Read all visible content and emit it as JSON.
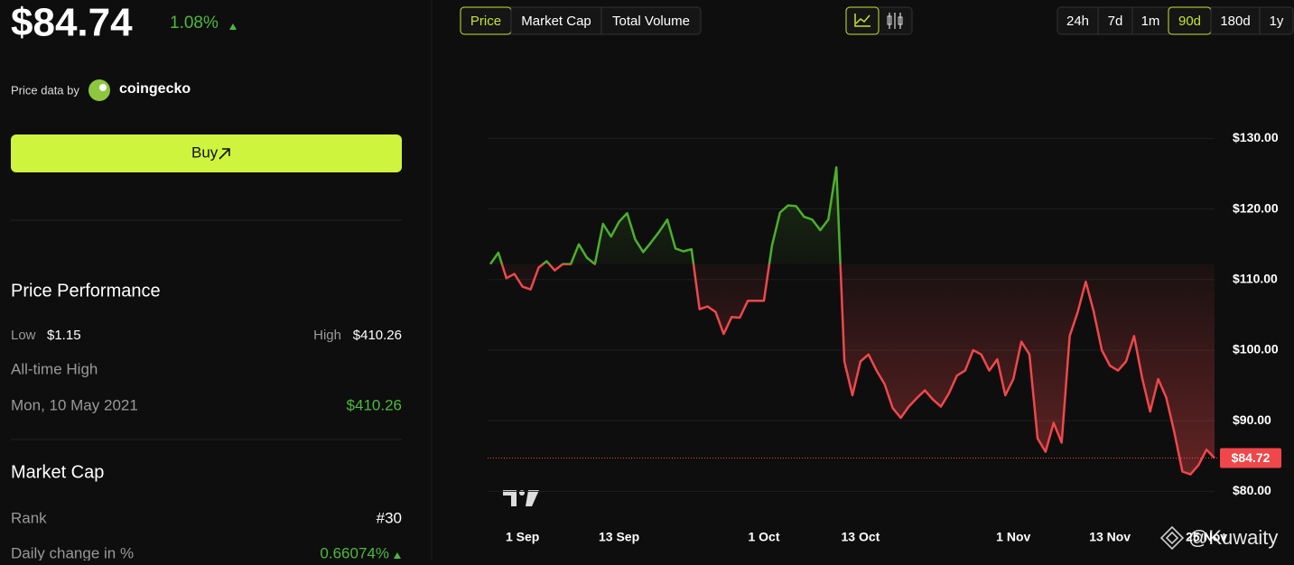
{
  "header": {
    "price": "$84.74",
    "change": "1.08%",
    "attribution_prefix": "Price data by",
    "attribution_brand": "coingecko"
  },
  "buy": {
    "label": "Buy"
  },
  "performance": {
    "title": "Price Performance",
    "low_label": "Low",
    "low": "$1.15",
    "high_label": "High",
    "high": "$410.26",
    "ath_label": "All-time High",
    "ath_date": "Mon, 10 May 2021",
    "ath_value": "$410.26"
  },
  "market_cap": {
    "title": "Market Cap",
    "rank_label": "Rank",
    "rank": "#30",
    "daily_label": "Daily change in %",
    "daily": "0.66074%"
  },
  "tabs": {
    "items": [
      "Price",
      "Market Cap",
      "Total Volume"
    ],
    "active": 0
  },
  "ranges": {
    "items": [
      "24h",
      "7d",
      "1m",
      "90d",
      "180d",
      "1y"
    ],
    "active": 3
  },
  "chart_data": {
    "type": "line",
    "categories": [
      null,
      null,
      null,
      null,
      "1 Sep",
      null,
      null,
      null,
      null,
      null,
      null,
      null,
      null,
      null,
      null,
      null,
      "13 Sep",
      null,
      null,
      null,
      null,
      null,
      null,
      null,
      null,
      null,
      null,
      null,
      null,
      null,
      null,
      null,
      null,
      null,
      "1 Oct",
      null,
      null,
      null,
      null,
      null,
      null,
      null,
      null,
      null,
      null,
      null,
      "13 Oct",
      null,
      null,
      null,
      null,
      null,
      null,
      null,
      null,
      null,
      null,
      null,
      null,
      null,
      null,
      null,
      null,
      null,
      null,
      "1 Nov",
      null,
      null,
      null,
      null,
      null,
      null,
      null,
      null,
      null,
      null,
      null,
      "13 Nov",
      null,
      null,
      null,
      null,
      null,
      null,
      null,
      null,
      null,
      null,
      null,
      "25 Nov",
      null
    ],
    "values": [
      112.2,
      113.8,
      110.2,
      110.8,
      109.0,
      108.6,
      111.7,
      112.6,
      111.3,
      112.2,
      112.2,
      115.0,
      113.1,
      112.2,
      117.9,
      116.1,
      118.2,
      119.4,
      115.7,
      113.9,
      115.3,
      116.8,
      118.5,
      114.4,
      114.0,
      114.3,
      105.8,
      106.2,
      105.4,
      102.3,
      104.7,
      104.6,
      107.0,
      107.0,
      107.0,
      114.8,
      119.5,
      120.5,
      120.4,
      118.9,
      118.5,
      117.0,
      118.5,
      125.9,
      98.4,
      93.6,
      98.4,
      99.4,
      97.1,
      95.2,
      91.8,
      90.4,
      92.0,
      93.2,
      94.3,
      93.0,
      92.0,
      93.9,
      96.4,
      97.1,
      100.0,
      99.4,
      97.1,
      98.7,
      93.6,
      95.9,
      101.2,
      99.4,
      87.5,
      85.6,
      89.7,
      86.9,
      102.0,
      105.4,
      109.7,
      105.4,
      100.0,
      97.8,
      97.1,
      98.4,
      102.0,
      96.1,
      91.3,
      95.9,
      93.3,
      88.4,
      82.8,
      82.4,
      83.7,
      85.9,
      84.72
    ],
    "up_color": "#4caf2c",
    "down_color": "#f0474a",
    "ylim": [
      75.7,
      138.1
    ],
    "yticks": [
      {
        "value": 80,
        "label": "$80.00"
      },
      {
        "value": 90,
        "label": "$90.00"
      },
      {
        "value": 100,
        "label": "$100.00"
      },
      {
        "value": 110,
        "label": "$110.00"
      },
      {
        "value": 120,
        "label": "$120.00"
      },
      {
        "value": 130,
        "label": "$130.00"
      }
    ],
    "grid": true,
    "price_line": {
      "value": 84.72,
      "label": "$84.72"
    },
    "watermark": "@Kuwaity"
  }
}
